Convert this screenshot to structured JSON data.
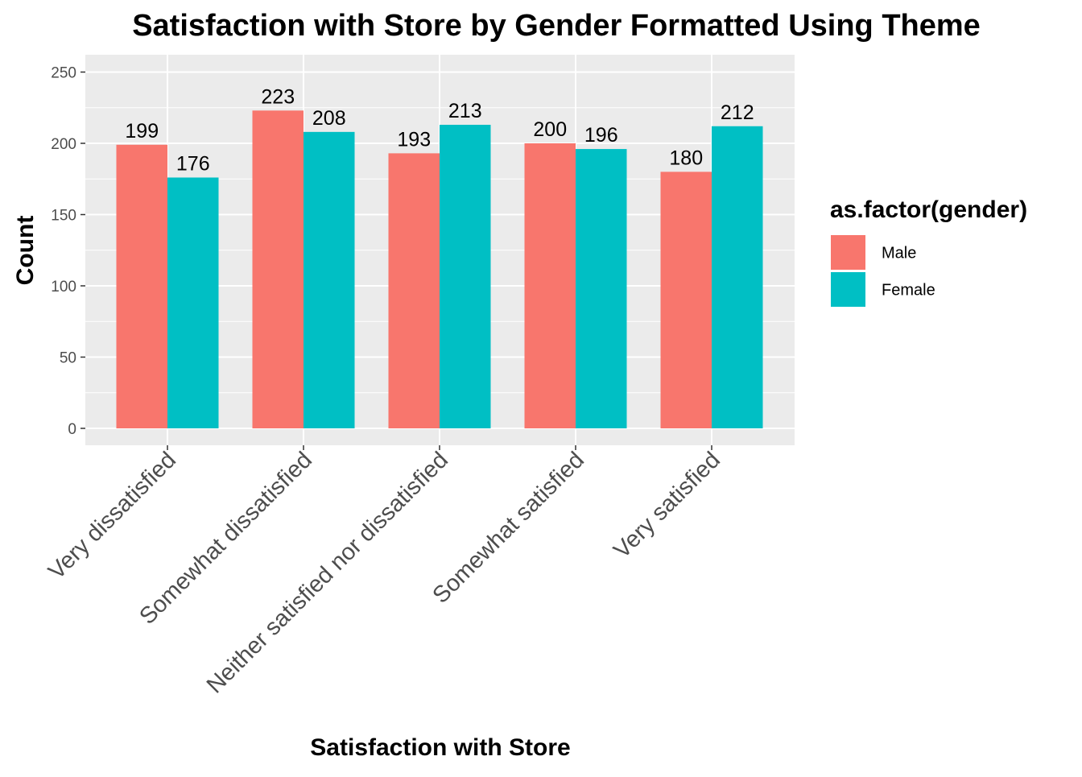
{
  "chart_data": {
    "type": "bar",
    "title": "Satisfaction with Store by Gender Formatted Using Theme",
    "xlabel": "Satisfaction with Store",
    "ylabel": "Count",
    "categories": [
      "Very dissatisfied",
      "Somewhat dissatisfied",
      "Neither satisfied nor dissatisfied",
      "Somewhat satisfied",
      "Very satisfied"
    ],
    "series": [
      {
        "name": "Male",
        "values": [
          199,
          223,
          193,
          200,
          180
        ],
        "color": "#F8766D"
      },
      {
        "name": "Female",
        "values": [
          176,
          208,
          213,
          196,
          212
        ],
        "color": "#00BFC4"
      }
    ],
    "ylim": [
      0,
      250
    ],
    "yticks": [
      "0",
      "50",
      "100",
      "150",
      "200",
      "250"
    ],
    "grid": true,
    "panel_background": "#EBEBEB",
    "legend": {
      "title": "as.factor(gender)",
      "placement": "right"
    }
  }
}
